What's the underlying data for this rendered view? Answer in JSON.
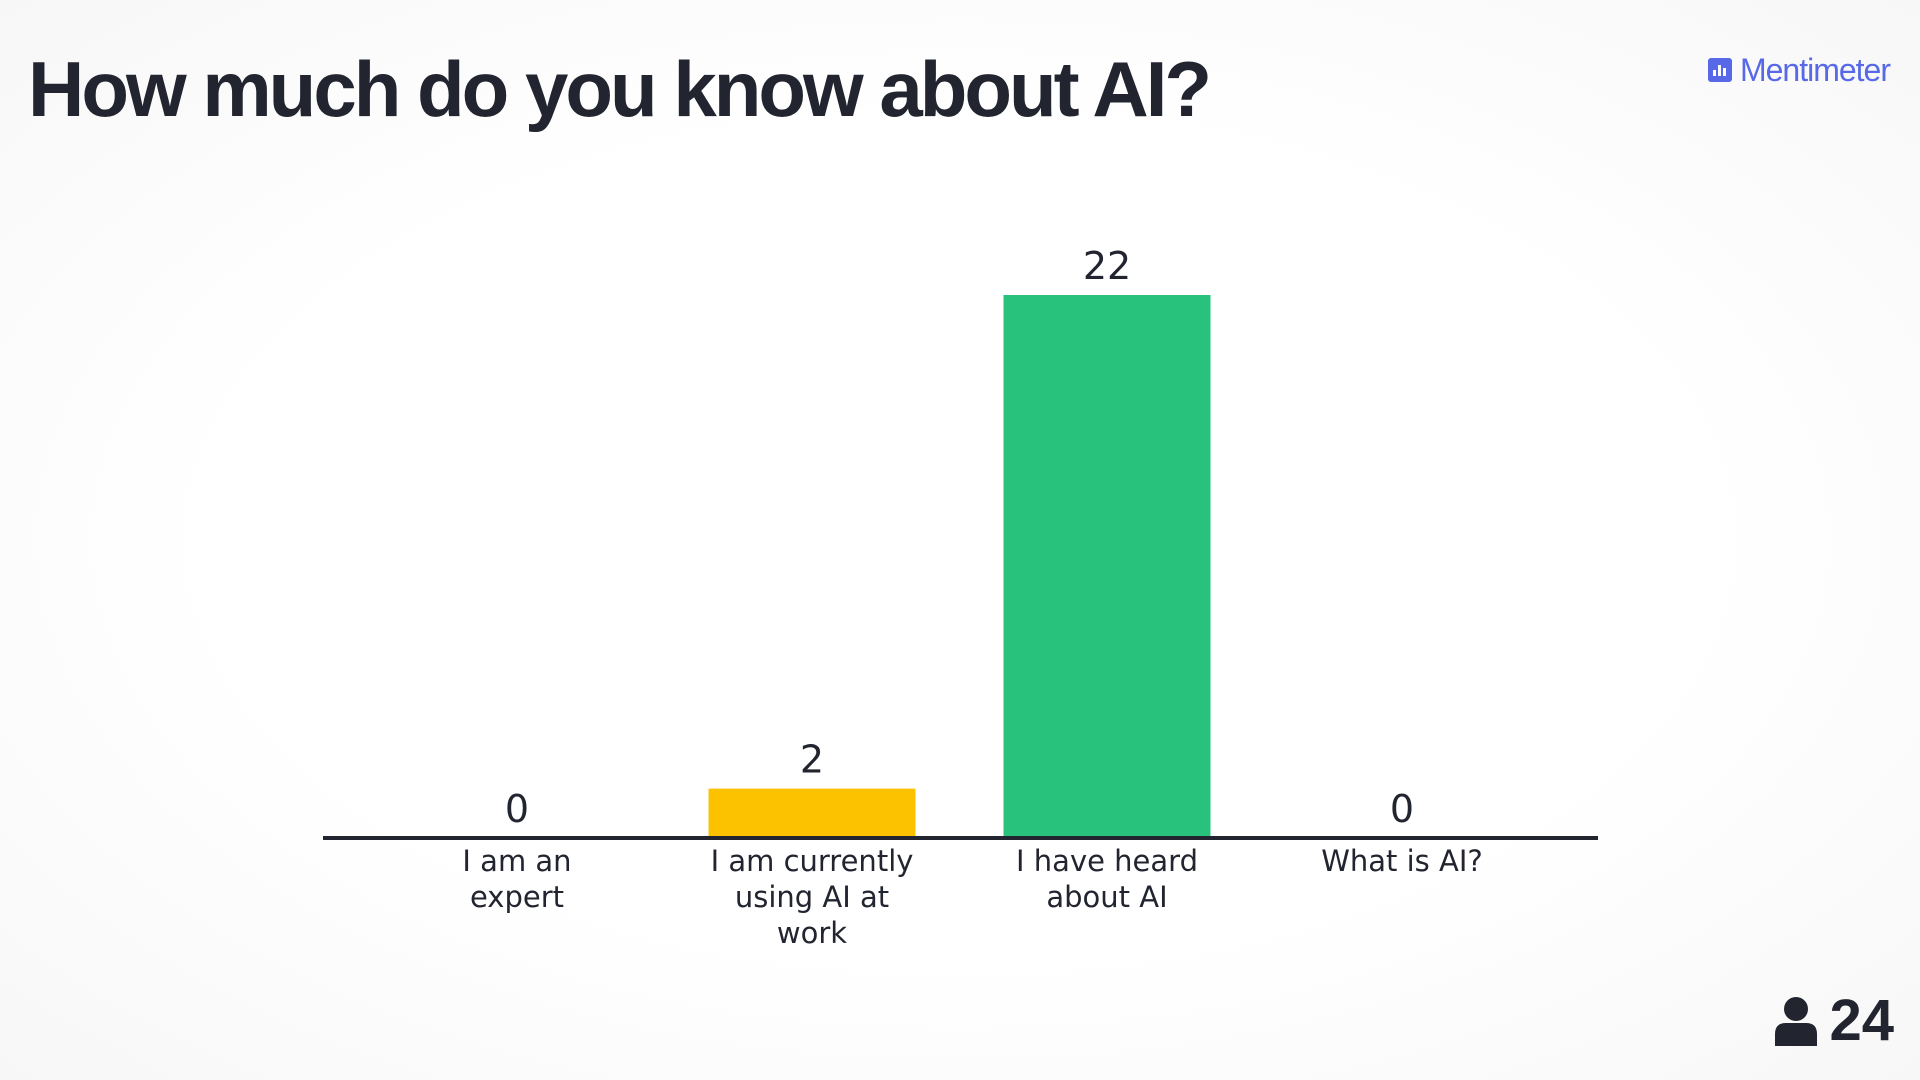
{
  "header": {
    "title": "How much do you know about AI?",
    "brand": "Mentimeter",
    "brand_icon": "bar-chart-icon"
  },
  "footer": {
    "participants_icon": "person-icon",
    "participants_count": "24"
  },
  "colors": {
    "text": "#22252f",
    "brand": "#5769e7",
    "yellow": "#fcc200",
    "green": "#29c27c"
  },
  "chart_data": {
    "type": "bar",
    "categories": [
      [
        "I am an",
        "expert"
      ],
      [
        "I am currently",
        "using AI at",
        "work"
      ],
      [
        "I have heard",
        "about AI"
      ],
      [
        "What is AI?"
      ]
    ],
    "values": [
      0,
      2,
      22,
      0
    ],
    "colors": [
      "#5769e7",
      "#fcc200",
      "#29c27c",
      "#e8464f"
    ],
    "title": "How much do you know about AI?",
    "xlabel": "",
    "ylabel": "",
    "ylim": [
      0,
      22
    ],
    "grid": false
  }
}
